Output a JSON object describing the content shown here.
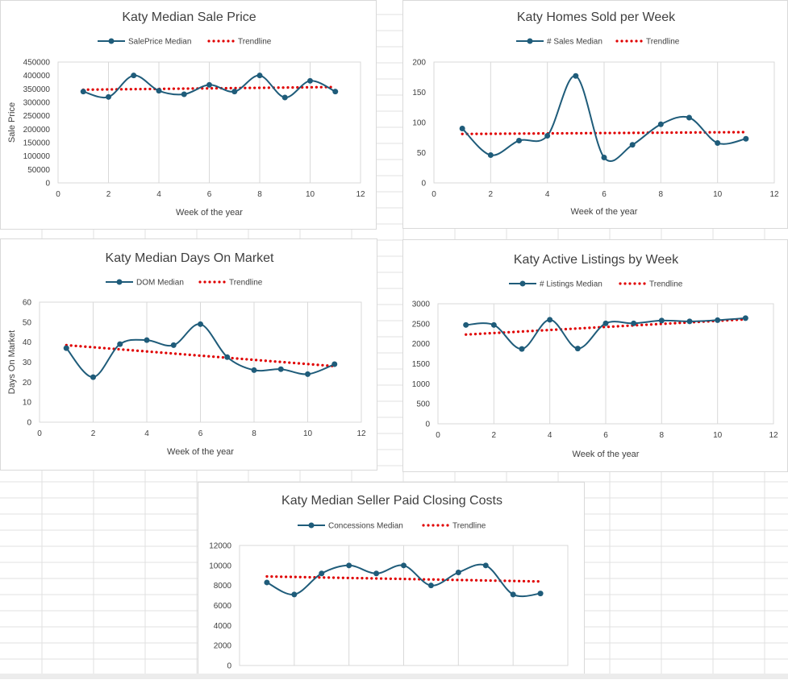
{
  "colors": {
    "series": "#1f5c7a",
    "trend": "#e00000",
    "grid": "#d9d9d9",
    "text": "#404040"
  },
  "chart_data": [
    {
      "type": "line",
      "title": "Katy Median Sale Price",
      "xlabel": "Week of the year",
      "ylabel": "Sale Price",
      "xlim": [
        0,
        12
      ],
      "xticks": [
        0,
        2,
        4,
        6,
        8,
        10,
        12
      ],
      "ylim": [
        0,
        450000
      ],
      "yticks": [
        0,
        50000,
        100000,
        150000,
        200000,
        250000,
        300000,
        350000,
        400000,
        450000
      ],
      "vgrid": true,
      "legend_position": "top",
      "series": [
        {
          "name": "SalePrice Median",
          "x": [
            1,
            2,
            3,
            4,
            5,
            6,
            7,
            8,
            9,
            10,
            11
          ],
          "y": [
            340000,
            320000,
            400000,
            343000,
            330000,
            365000,
            340000,
            400000,
            318000,
            380000,
            340000
          ]
        }
      ],
      "trendline": {
        "name": "Trendline",
        "start": [
          1,
          347000
        ],
        "end": [
          11,
          357000
        ]
      }
    },
    {
      "type": "line",
      "title": "Katy Homes Sold per Week",
      "xlabel": "Week of the year",
      "ylabel": "",
      "xlim": [
        0,
        12
      ],
      "xticks": [
        0,
        2,
        4,
        6,
        8,
        10,
        12
      ],
      "ylim": [
        0,
        200
      ],
      "yticks": [
        0,
        50,
        100,
        150,
        200
      ],
      "vgrid": true,
      "legend_position": "top",
      "series": [
        {
          "name": "# Sales Median",
          "x": [
            1,
            2,
            3,
            4,
            5,
            6,
            7,
            8,
            9,
            10,
            11
          ],
          "y": [
            90,
            46,
            70,
            78,
            177,
            42,
            63,
            97,
            108,
            66,
            73
          ]
        }
      ],
      "trendline": {
        "name": "Trendline",
        "start": [
          1,
          81
        ],
        "end": [
          11,
          84
        ]
      }
    },
    {
      "type": "line",
      "title": "Katy Median Days On Market",
      "xlabel": "Week of the year",
      "ylabel": "Days On Market",
      "xlim": [
        0,
        12
      ],
      "xticks": [
        0,
        2,
        4,
        6,
        8,
        10,
        12
      ],
      "ylim": [
        0,
        60
      ],
      "yticks": [
        0,
        10,
        20,
        30,
        40,
        50,
        60
      ],
      "vgrid": true,
      "legend_position": "top",
      "series": [
        {
          "name": "DOM Median",
          "x": [
            1,
            2,
            3,
            4,
            5,
            6,
            7,
            8,
            9,
            10,
            11
          ],
          "y": [
            37,
            22.5,
            39,
            41,
            38.5,
            49,
            32.5,
            26,
            26.5,
            24,
            29
          ]
        }
      ],
      "trendline": {
        "name": "Trendline",
        "start": [
          1,
          38.5
        ],
        "end": [
          11,
          28
        ]
      }
    },
    {
      "type": "line",
      "title": "Katy Active Listings by Week",
      "xlabel": "Week of the year",
      "ylabel": "",
      "xlim": [
        0,
        12
      ],
      "xticks": [
        0,
        2,
        4,
        6,
        8,
        10,
        12
      ],
      "ylim": [
        0,
        3000
      ],
      "yticks": [
        0,
        500,
        1000,
        1500,
        2000,
        2500,
        3000
      ],
      "vgrid": true,
      "legend_position": "top",
      "series": [
        {
          "name": "# Listings Median",
          "x": [
            1,
            2,
            3,
            4,
            5,
            6,
            7,
            8,
            9,
            10,
            11
          ],
          "y": [
            2470,
            2470,
            1870,
            2600,
            1880,
            2510,
            2510,
            2580,
            2560,
            2590,
            2640
          ]
        }
      ],
      "trendline": {
        "name": "Trendline",
        "start": [
          1,
          2230
        ],
        "end": [
          11,
          2610
        ]
      }
    },
    {
      "type": "line",
      "title": "Katy Median Seller Paid Closing Costs",
      "xlabel": "",
      "ylabel": "",
      "xlim": [
        0,
        12
      ],
      "xticks": [],
      "ylim": [
        0,
        12000
      ],
      "yticks": [
        0,
        2000,
        4000,
        6000,
        8000,
        10000,
        12000
      ],
      "vgrid": true,
      "legend_position": "top",
      "series": [
        {
          "name": "Concessions Median",
          "x": [
            1,
            2,
            3,
            4,
            5,
            6,
            7,
            8,
            9,
            10,
            11
          ],
          "y": [
            8300,
            7100,
            9200,
            10000,
            9200,
            10000,
            8000,
            9300,
            10000,
            7100,
            7200
          ]
        }
      ],
      "trendline": {
        "name": "Trendline",
        "start": [
          1,
          8900
        ],
        "end": [
          11,
          8400
        ]
      }
    }
  ]
}
